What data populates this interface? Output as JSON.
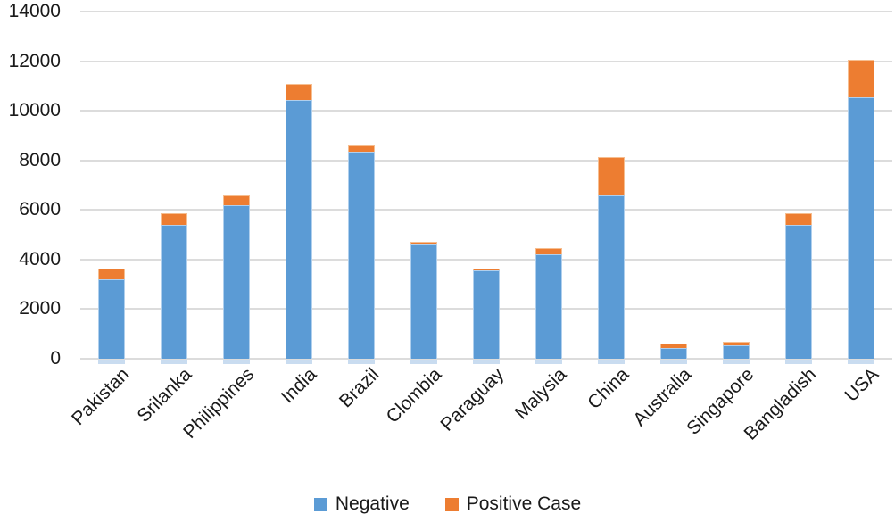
{
  "chart_data": {
    "type": "bar",
    "stacked": true,
    "title": "",
    "xlabel": "",
    "ylabel": "",
    "categories": [
      "Pakistan",
      "Srilanka",
      "Philippines",
      "India",
      "Brazil",
      "Clombia",
      "Paraguay",
      "Malysia",
      "China",
      "Australia",
      "Singapore",
      "Bangladish",
      "USA"
    ],
    "series": [
      {
        "name": "Negative",
        "color": "#5B9BD5",
        "values": [
          3200,
          5400,
          6200,
          10450,
          8350,
          4600,
          3550,
          4200,
          6600,
          450,
          550,
          5400,
          10550
        ]
      },
      {
        "name": "Positive Case",
        "color": "#ED7D31",
        "values": [
          450,
          450,
          400,
          650,
          250,
          100,
          100,
          250,
          1550,
          150,
          150,
          450,
          1500
        ]
      }
    ],
    "ylim": [
      0,
      14000
    ],
    "yticks": [
      0,
      2000,
      4000,
      6000,
      8000,
      10000,
      12000,
      14000
    ],
    "grid": true,
    "gridline_color": "#DCDCDC",
    "text_color": "#1A1A1A",
    "legend_position": "bottom",
    "x_label_rotation_deg": -45
  }
}
